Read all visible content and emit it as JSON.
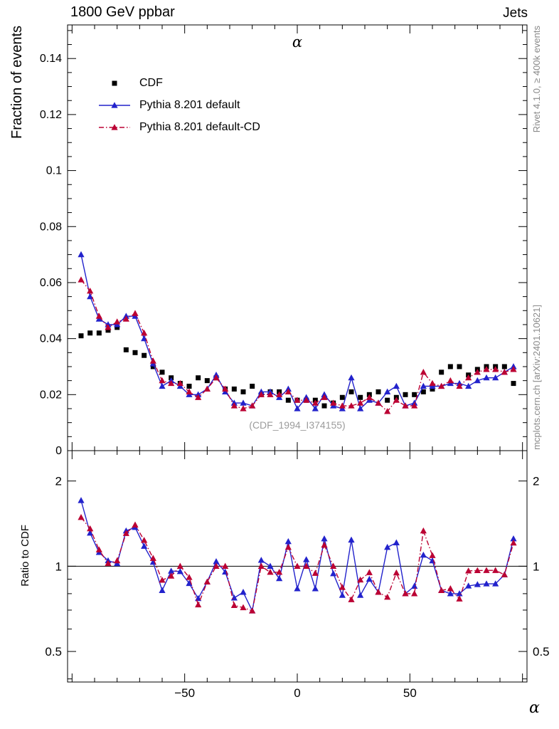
{
  "header": {
    "left_title": "1800 GeV ppbar",
    "right_title": "Jets"
  },
  "side_notes": {
    "rivet": "Rivet 4.1.0, ≥ 400k events",
    "mcplots": "mcplots.cern.ch [arXiv:2401.10621]"
  },
  "watermark": "(CDF_1994_I374155)",
  "chart_data": {
    "type": "line",
    "title": "α",
    "xlabel": "α",
    "ylabel_top": "Fraction of events",
    "ylabel_ratio": "Ratio to CDF",
    "xlim": [
      -102,
      102
    ],
    "ylim_top": [
      0,
      0.152
    ],
    "ylim_ratio": [
      0.39,
      2.56
    ],
    "ratio_reference": 1,
    "x_ticks": [
      {
        "v": -50,
        "label": "−50"
      },
      {
        "v": 0,
        "label": "0"
      },
      {
        "v": 50,
        "label": "50"
      }
    ],
    "x_minor_step": 10,
    "y_ticks_top": [
      {
        "v": 0,
        "label": "0"
      },
      {
        "v": 0.02,
        "label": "0.02"
      },
      {
        "v": 0.04,
        "label": "0.04"
      },
      {
        "v": 0.06,
        "label": "0.06"
      },
      {
        "v": 0.08,
        "label": "0.08"
      },
      {
        "v": 0.1,
        "label": "0.1"
      },
      {
        "v": 0.12,
        "label": "0.12"
      },
      {
        "v": 0.14,
        "label": "0.14"
      }
    ],
    "y_minor_step_top": 0.005,
    "ratio_ticks": [
      {
        "v": 0.5,
        "label": "0.5"
      },
      {
        "v": 1,
        "label": "1"
      },
      {
        "v": 2,
        "label": "2"
      }
    ],
    "ratio_minor": [
      0.4,
      0.6,
      0.7,
      0.8,
      0.9
    ],
    "x": [
      -96,
      -92,
      -88,
      -84,
      -80,
      -76,
      -72,
      -68,
      -64,
      -60,
      -56,
      -52,
      -48,
      -44,
      -40,
      -36,
      -32,
      -28,
      -24,
      -20,
      -16,
      -12,
      -8,
      -4,
      0,
      4,
      8,
      12,
      16,
      20,
      24,
      28,
      32,
      36,
      40,
      44,
      48,
      52,
      56,
      60,
      64,
      68,
      72,
      76,
      80,
      84,
      88,
      92,
      96
    ],
    "series": [
      {
        "name": "CDF",
        "marker": "square",
        "line": "none",
        "color": "#000000",
        "values": [
          0.041,
          0.042,
          0.042,
          0.043,
          0.044,
          0.036,
          0.035,
          0.034,
          0.03,
          0.028,
          0.026,
          0.024,
          0.023,
          0.026,
          0.025,
          0.026,
          0.022,
          0.022,
          0.021,
          0.023,
          0.02,
          0.021,
          0.021,
          0.018,
          0.018,
          0.018,
          0.018,
          0.016,
          0.017,
          0.019,
          0.021,
          0.019,
          0.02,
          0.021,
          0.018,
          0.019,
          0.02,
          0.02,
          0.021,
          0.022,
          0.028,
          0.03,
          0.03,
          0.027,
          0.029,
          0.03,
          0.03,
          0.03,
          0.024
        ]
      },
      {
        "name": "Pythia 8.201 default",
        "marker": "triangle",
        "line": "solid",
        "color": "#2222cc",
        "values": [
          0.07,
          0.055,
          0.047,
          0.045,
          0.045,
          0.048,
          0.048,
          0.04,
          0.031,
          0.023,
          0.025,
          0.023,
          0.02,
          0.02,
          0.022,
          0.027,
          0.021,
          0.017,
          0.017,
          0.016,
          0.021,
          0.021,
          0.019,
          0.022,
          0.015,
          0.019,
          0.015,
          0.02,
          0.016,
          0.015,
          0.026,
          0.015,
          0.018,
          0.017,
          0.021,
          0.023,
          0.016,
          0.017,
          0.023,
          0.023,
          0.023,
          0.024,
          0.024,
          0.023,
          0.025,
          0.026,
          0.026,
          0.028,
          0.03
        ]
      },
      {
        "name": "Pythia 8.201 default-CD",
        "marker": "triangle",
        "line": "dashdot",
        "color": "#bb0033",
        "values": [
          0.061,
          0.057,
          0.048,
          0.044,
          0.046,
          0.047,
          0.049,
          0.042,
          0.032,
          0.025,
          0.024,
          0.024,
          0.021,
          0.019,
          0.022,
          0.026,
          0.022,
          0.016,
          0.015,
          0.016,
          0.02,
          0.02,
          0.02,
          0.021,
          0.018,
          0.018,
          0.017,
          0.019,
          0.017,
          0.016,
          0.016,
          0.017,
          0.019,
          0.017,
          0.014,
          0.018,
          0.016,
          0.016,
          0.028,
          0.024,
          0.023,
          0.025,
          0.023,
          0.026,
          0.028,
          0.029,
          0.029,
          0.028,
          0.029
        ]
      }
    ]
  }
}
